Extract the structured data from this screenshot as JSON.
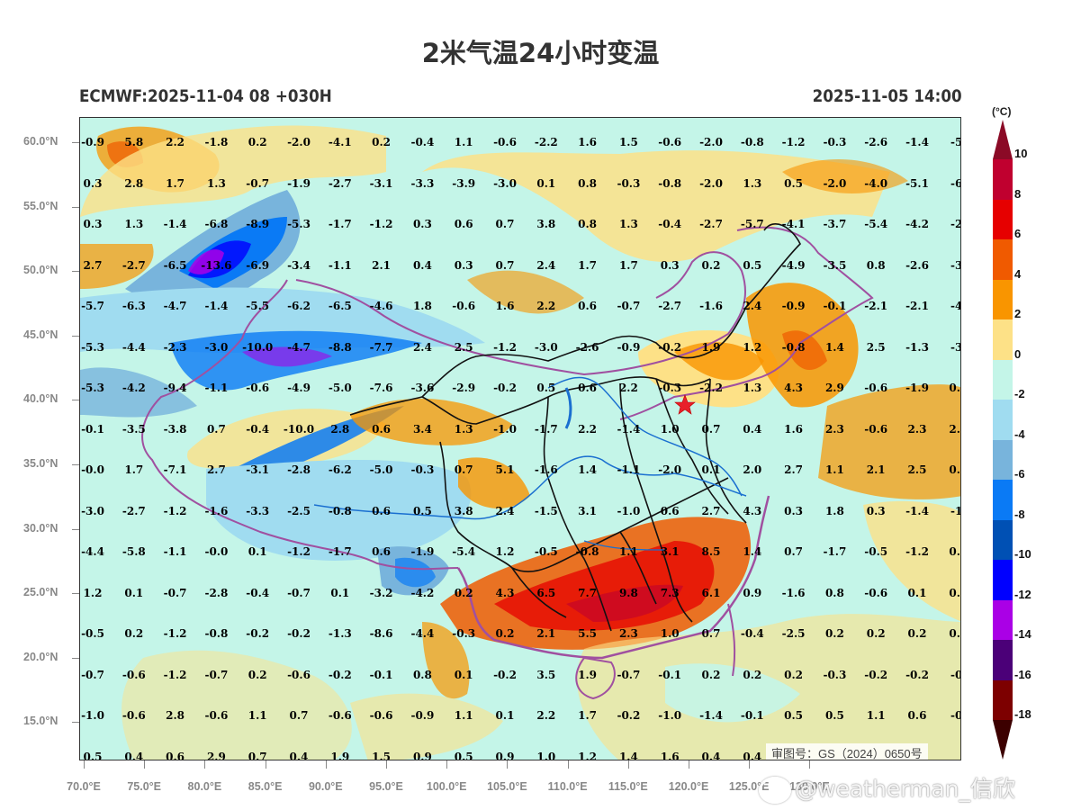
{
  "header": {
    "title": "2米气温24小时变温",
    "model_run": "ECMWF:2025-11-04 08 +030H",
    "valid_time": "2025-11-05 14:00"
  },
  "colorbar": {
    "unit": "(°C)",
    "levels": [
      "10",
      "8",
      "6",
      "4",
      "2",
      "0",
      "-2",
      "-4",
      "-6",
      "-8",
      "-10",
      "-12",
      "-14",
      "-16",
      "-18"
    ],
    "colors": [
      "#8b0a26",
      "#c0002f",
      "#e60000",
      "#f05a00",
      "#f99500",
      "#fde187",
      "#c4f5e8",
      "#a0dcf0",
      "#78b4dc",
      "#0a7af5",
      "#0050b4",
      "#0000ff",
      "#aa00e6",
      "#4b0078",
      "#7d0000",
      "#3c0000"
    ]
  },
  "axes": {
    "y_ticks": [
      "60.0°N",
      "55.0°N",
      "50.0°N",
      "45.0°N",
      "40.0°N",
      "35.0°N",
      "30.0°N",
      "25.0°N",
      "20.0°N",
      "15.0°N"
    ],
    "x_ticks": [
      "70.0°E",
      "75.0°E",
      "80.0°E",
      "85.0°E",
      "90.0°E",
      "95.0°E",
      "100.0°E",
      "105.0°E",
      "110.0°E",
      "115.0°E",
      "120.0°E",
      "125.0°E",
      "130.0°E"
    ]
  },
  "map": {
    "marker": "Beijing star",
    "stamp": "审图号：GS（2024）0650号"
  },
  "watermark": "@weatherman_信欣",
  "grid_values": [
    [
      "-0.9",
      "5.8",
      "2.2",
      "-1.8",
      "0.2",
      "-2.0",
      "-4.1",
      "0.2",
      "-0.4",
      "1.1",
      "-0.6",
      "-2.2",
      "1.6",
      "1.5",
      "-0.6",
      "-2.0",
      "-0.8",
      "-1.2",
      "-0.3",
      "-2.6",
      "-1.4",
      "-5."
    ],
    [
      "0.3",
      "2.8",
      "1.7",
      "1.3",
      "-0.7",
      "-1.9",
      "-2.7",
      "-3.1",
      "-3.3",
      "-3.9",
      "-3.0",
      "0.1",
      "0.8",
      "-0.3",
      "-0.8",
      "-2.0",
      "1.3",
      "0.5",
      "-2.0",
      "-4.0",
      "-5.1",
      "-6."
    ],
    [
      "0.3",
      "1.3",
      "-1.4",
      "-6.8",
      "-8.9",
      "-5.3",
      "-1.7",
      "-1.2",
      "0.3",
      "0.6",
      "0.7",
      "3.8",
      "0.8",
      "1.3",
      "-0.4",
      "-2.7",
      "-5.7",
      "-4.1",
      "-3.7",
      "-5.4",
      "-4.2",
      "-2."
    ],
    [
      "2.7",
      "-2.7",
      "-6.5",
      "-13.6",
      "-6.9",
      "-3.4",
      "-1.1",
      "2.1",
      "0.4",
      "0.3",
      "0.7",
      "2.4",
      "1.7",
      "1.7",
      "0.3",
      "0.2",
      "0.5",
      "-4.9",
      "-3.5",
      "0.8",
      "-2.6",
      "-3."
    ],
    [
      "-5.7",
      "-6.3",
      "-4.7",
      "-1.4",
      "-5.5",
      "-6.2",
      "-6.5",
      "-4.6",
      "1.8",
      "-0.6",
      "1.6",
      "2.2",
      "0.6",
      "-0.7",
      "-2.7",
      "-1.6",
      "2.4",
      "-0.9",
      "-0.1",
      "-2.1",
      "-2.1",
      "-4."
    ],
    [
      "-5.3",
      "-4.4",
      "-2.3",
      "-3.0",
      "-10.0",
      "-4.7",
      "-8.8",
      "-7.7",
      "2.4",
      "2.5",
      "-1.2",
      "-3.0",
      "-2.6",
      "-0.9",
      "-0.2",
      "1.9",
      "1.2",
      "-0.8",
      "1.4",
      "2.5",
      "-1.3",
      "-3."
    ],
    [
      "-5.3",
      "-4.2",
      "-9.4",
      "-1.1",
      "-0.6",
      "-4.9",
      "-5.0",
      "-7.6",
      "-3.6",
      "-2.9",
      "-0.2",
      "0.5",
      "0.6",
      "2.2",
      "-0.3",
      "-2.2",
      "1.3",
      "4.3",
      "2.9",
      "-0.6",
      "-1.9",
      "0.1"
    ],
    [
      "-0.1",
      "-3.5",
      "-3.8",
      "0.7",
      "-0.4",
      "-10.0",
      "2.8",
      "0.6",
      "3.4",
      "1.3",
      "-1.0",
      "-1.7",
      "2.2",
      "-1.4",
      "1.0",
      "0.7",
      "0.4",
      "1.6",
      "2.3",
      "-0.6",
      "2.3",
      "2.2"
    ],
    [
      "-0.0",
      "1.7",
      "-7.1",
      "2.7",
      "-3.1",
      "-2.8",
      "-6.2",
      "-5.0",
      "-0.3",
      "0.7",
      "5.1",
      "-1.6",
      "1.4",
      "-1.1",
      "-2.0",
      "0.1",
      "2.0",
      "2.7",
      "1.1",
      "2.1",
      "2.5",
      "0.8"
    ],
    [
      "-3.0",
      "-2.7",
      "-1.2",
      "-1.6",
      "-3.3",
      "-2.5",
      "-0.8",
      "0.6",
      "0.5",
      "3.8",
      "2.4",
      "-1.5",
      "3.1",
      "-1.0",
      "0.6",
      "2.7",
      "4.3",
      "0.3",
      "1.8",
      "0.3",
      "-1.4",
      "-1."
    ],
    [
      "-4.4",
      "-5.8",
      "-1.1",
      "-0.0",
      "0.1",
      "-1.2",
      "-1.7",
      "0.6",
      "-1.9",
      "-5.4",
      "1.2",
      "-0.5",
      "-0.8",
      "1.1",
      "3.1",
      "8.5",
      "1.4",
      "0.7",
      "-1.7",
      "-0.5",
      "-1.2",
      "0.6"
    ],
    [
      "1.2",
      "0.1",
      "-0.7",
      "-2.8",
      "-0.4",
      "-0.7",
      "0.1",
      "-3.2",
      "-4.2",
      "0.2",
      "4.3",
      "6.5",
      "7.7",
      "9.8",
      "7.3",
      "6.1",
      "0.9",
      "-1.6",
      "0.8",
      "-0.6",
      "0.1",
      "0.4"
    ],
    [
      "-0.5",
      "0.2",
      "-1.2",
      "-0.8",
      "-0.2",
      "-0.2",
      "-1.3",
      "-8.6",
      "-4.4",
      "-0.3",
      "0.2",
      "2.1",
      "5.5",
      "2.3",
      "1.0",
      "0.7",
      "-0.4",
      "-2.5",
      "0.2",
      "0.2",
      "0.2",
      "0.5"
    ],
    [
      "-0.7",
      "-0.6",
      "-1.2",
      "-0.7",
      "0.2",
      "-0.6",
      "-0.2",
      "-0.1",
      "0.8",
      "0.1",
      "-0.2",
      "3.5",
      "1.9",
      "-0.7",
      "-0.1",
      "0.2",
      "0.2",
      "0.2",
      "-0.3",
      "-0.2",
      "-0.2",
      "-0."
    ],
    [
      "-1.0",
      "-0.6",
      "2.8",
      "-0.6",
      "1.1",
      "0.7",
      "-0.6",
      "-0.6",
      "-0.9",
      "1.1",
      "0.1",
      "2.2",
      "1.7",
      "-0.2",
      "-1.0",
      "-1.4",
      "-0.1",
      "0.5",
      "0.5",
      "1.1",
      "0.6",
      "-0."
    ],
    [
      "0.5",
      "0.4",
      "0.6",
      "2.9",
      "0.7",
      "0.4",
      "1.9",
      "1.5",
      "0.9",
      "0.5",
      "0.9",
      "1.0",
      "1.2",
      "1.4",
      "1.6",
      "0.4",
      "0.4",
      "",
      "",
      "",
      "",
      ""
    ]
  ]
}
